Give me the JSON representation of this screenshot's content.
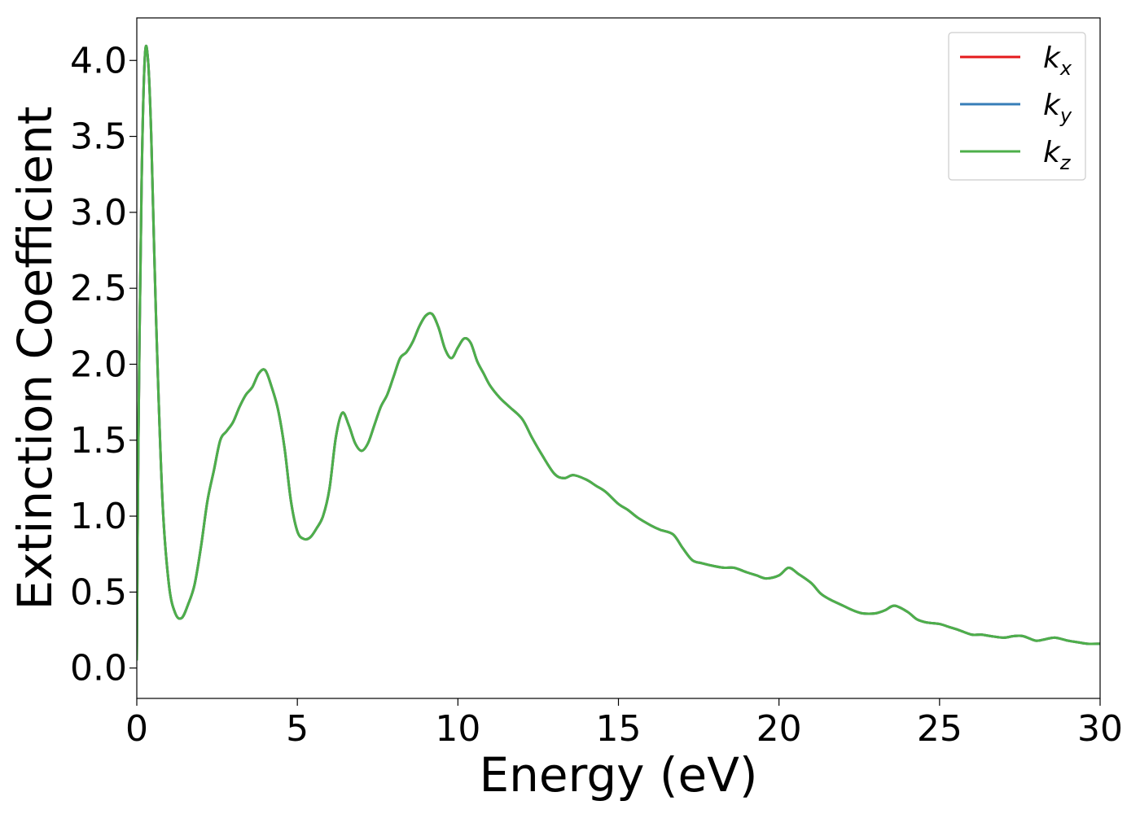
{
  "chart_data": {
    "type": "line",
    "title": "",
    "xlabel": "Energy (eV)",
    "ylabel": "Extinction Coefficient",
    "xlim": [
      0,
      30
    ],
    "ylim": [
      -0.2,
      4.28
    ],
    "xticks": [
      0,
      5,
      10,
      15,
      20,
      25,
      30
    ],
    "xtick_labels": [
      "0",
      "5",
      "10",
      "15",
      "20",
      "25",
      "30"
    ],
    "yticks": [
      0.0,
      0.5,
      1.0,
      1.5,
      2.0,
      2.5,
      3.0,
      3.5,
      4.0
    ],
    "ytick_labels": [
      "0.0",
      "0.5",
      "1.0",
      "1.5",
      "2.0",
      "2.5",
      "3.0",
      "3.5",
      "4.0"
    ],
    "grid": false,
    "legend_position": "top-right",
    "x": [
      0,
      0.05,
      0.15,
      0.25,
      0.35,
      0.45,
      0.6,
      0.8,
      1.0,
      1.2,
      1.4,
      1.6,
      1.8,
      2.0,
      2.2,
      2.4,
      2.6,
      2.8,
      3.0,
      3.2,
      3.4,
      3.6,
      3.8,
      4.0,
      4.2,
      4.4,
      4.6,
      4.8,
      5.0,
      5.2,
      5.4,
      5.6,
      5.8,
      6.0,
      6.2,
      6.4,
      6.6,
      6.8,
      7.0,
      7.2,
      7.4,
      7.6,
      7.8,
      8.0,
      8.2,
      8.4,
      8.6,
      8.8,
      9.0,
      9.2,
      9.4,
      9.6,
      9.8,
      10.0,
      10.2,
      10.4,
      10.6,
      10.8,
      11.0,
      11.3,
      11.6,
      12.0,
      12.3,
      12.6,
      13.0,
      13.3,
      13.6,
      14.0,
      14.3,
      14.6,
      15.0,
      15.3,
      15.6,
      16.0,
      16.3,
      16.7,
      17.0,
      17.3,
      17.6,
      18.0,
      18.3,
      18.6,
      19.0,
      19.3,
      19.6,
      20.0,
      20.3,
      20.6,
      21.0,
      21.3,
      21.6,
      22.0,
      22.3,
      22.6,
      23.0,
      23.3,
      23.6,
      24.0,
      24.3,
      24.6,
      25.0,
      25.3,
      25.6,
      26.0,
      26.3,
      26.6,
      27.0,
      27.3,
      27.6,
      28.0,
      28.3,
      28.6,
      29.0,
      29.3,
      29.6,
      30.0
    ],
    "series": [
      {
        "name": "k_x",
        "label_base": "k",
        "label_sub": "x",
        "color": "#e41a1c",
        "values": [
          0.05,
          1.5,
          3.2,
          4.02,
          4.0,
          3.5,
          2.3,
          1.1,
          0.55,
          0.36,
          0.33,
          0.42,
          0.55,
          0.8,
          1.1,
          1.3,
          1.5,
          1.56,
          1.62,
          1.72,
          1.8,
          1.85,
          1.94,
          1.96,
          1.85,
          1.7,
          1.45,
          1.1,
          0.9,
          0.85,
          0.86,
          0.92,
          1.0,
          1.18,
          1.52,
          1.68,
          1.6,
          1.48,
          1.43,
          1.48,
          1.6,
          1.72,
          1.8,
          1.92,
          2.04,
          2.08,
          2.15,
          2.25,
          2.32,
          2.33,
          2.24,
          2.1,
          2.04,
          2.11,
          2.17,
          2.14,
          2.02,
          1.94,
          1.86,
          1.78,
          1.72,
          1.64,
          1.52,
          1.41,
          1.28,
          1.25,
          1.27,
          1.24,
          1.2,
          1.16,
          1.08,
          1.04,
          0.99,
          0.94,
          0.91,
          0.88,
          0.79,
          0.71,
          0.69,
          0.67,
          0.66,
          0.66,
          0.63,
          0.61,
          0.59,
          0.61,
          0.66,
          0.62,
          0.56,
          0.49,
          0.45,
          0.41,
          0.38,
          0.36,
          0.36,
          0.38,
          0.41,
          0.37,
          0.32,
          0.3,
          0.29,
          0.27,
          0.25,
          0.22,
          0.22,
          0.21,
          0.2,
          0.21,
          0.21,
          0.18,
          0.19,
          0.2,
          0.18,
          0.17,
          0.16,
          0.16
        ]
      },
      {
        "name": "k_y",
        "label_base": "k",
        "label_sub": "y",
        "color": "#377eb8",
        "values": [
          0.05,
          1.5,
          3.2,
          4.02,
          4.0,
          3.5,
          2.3,
          1.1,
          0.55,
          0.36,
          0.33,
          0.42,
          0.55,
          0.8,
          1.1,
          1.3,
          1.5,
          1.56,
          1.62,
          1.72,
          1.8,
          1.85,
          1.94,
          1.96,
          1.85,
          1.7,
          1.45,
          1.1,
          0.9,
          0.85,
          0.86,
          0.92,
          1.0,
          1.18,
          1.52,
          1.68,
          1.6,
          1.48,
          1.43,
          1.48,
          1.6,
          1.72,
          1.8,
          1.92,
          2.04,
          2.08,
          2.15,
          2.25,
          2.32,
          2.33,
          2.24,
          2.1,
          2.04,
          2.11,
          2.17,
          2.14,
          2.02,
          1.94,
          1.86,
          1.78,
          1.72,
          1.64,
          1.52,
          1.41,
          1.28,
          1.25,
          1.27,
          1.24,
          1.2,
          1.16,
          1.08,
          1.04,
          0.99,
          0.94,
          0.91,
          0.88,
          0.79,
          0.71,
          0.69,
          0.67,
          0.66,
          0.66,
          0.63,
          0.61,
          0.59,
          0.61,
          0.66,
          0.62,
          0.56,
          0.49,
          0.45,
          0.41,
          0.38,
          0.36,
          0.36,
          0.38,
          0.41,
          0.37,
          0.32,
          0.3,
          0.29,
          0.27,
          0.25,
          0.22,
          0.22,
          0.21,
          0.2,
          0.21,
          0.21,
          0.18,
          0.19,
          0.2,
          0.18,
          0.17,
          0.16,
          0.16
        ]
      },
      {
        "name": "k_z",
        "label_base": "k",
        "label_sub": "z",
        "color": "#4daf4a",
        "values": [
          0.05,
          1.5,
          3.2,
          4.02,
          4.0,
          3.5,
          2.3,
          1.1,
          0.55,
          0.36,
          0.33,
          0.42,
          0.55,
          0.8,
          1.1,
          1.3,
          1.5,
          1.56,
          1.62,
          1.72,
          1.8,
          1.85,
          1.94,
          1.96,
          1.85,
          1.7,
          1.45,
          1.1,
          0.9,
          0.85,
          0.86,
          0.92,
          1.0,
          1.18,
          1.52,
          1.68,
          1.6,
          1.48,
          1.43,
          1.48,
          1.6,
          1.72,
          1.8,
          1.92,
          2.04,
          2.08,
          2.15,
          2.25,
          2.32,
          2.33,
          2.24,
          2.1,
          2.04,
          2.11,
          2.17,
          2.14,
          2.02,
          1.94,
          1.86,
          1.78,
          1.72,
          1.64,
          1.52,
          1.41,
          1.28,
          1.25,
          1.27,
          1.24,
          1.2,
          1.16,
          1.08,
          1.04,
          0.99,
          0.94,
          0.91,
          0.88,
          0.79,
          0.71,
          0.69,
          0.67,
          0.66,
          0.66,
          0.63,
          0.61,
          0.59,
          0.61,
          0.66,
          0.62,
          0.56,
          0.49,
          0.45,
          0.41,
          0.38,
          0.36,
          0.36,
          0.38,
          0.41,
          0.37,
          0.32,
          0.3,
          0.29,
          0.27,
          0.25,
          0.22,
          0.22,
          0.21,
          0.2,
          0.21,
          0.21,
          0.18,
          0.19,
          0.2,
          0.18,
          0.17,
          0.16,
          0.16
        ]
      }
    ]
  }
}
